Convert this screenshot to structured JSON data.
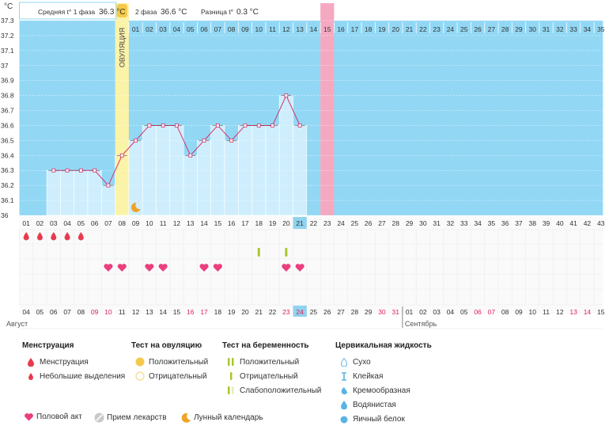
{
  "header": {
    "unit": "°C",
    "phase1_label": "Средняя t° 1 фаза",
    "phase1_value": "36.3 °C",
    "phase2_label": "2 фаза",
    "phase2_value": "36.6 °C",
    "diff_label": "Разница t°",
    "diff_value": "0.3 °C"
  },
  "chart_data": {
    "type": "line",
    "ylim": [
      36,
      37.3
    ],
    "y_ticks": [
      "37.3",
      "37.2",
      "37.1",
      "37",
      "36.9",
      "36.8",
      "36.7",
      "36.6",
      "36.5",
      "36.4",
      "36.3",
      "36.2",
      "36.1",
      "36"
    ],
    "cycle_days": [
      "01",
      "02",
      "03",
      "04",
      "05",
      "06",
      "07",
      "08",
      "09",
      "10",
      "11",
      "12",
      "13",
      "14",
      "15",
      "16",
      "17",
      "18",
      "19",
      "20",
      "21",
      "22",
      "23",
      "24",
      "25",
      "26",
      "27",
      "28",
      "29",
      "30",
      "31",
      "32",
      "33",
      "34",
      "35",
      "36",
      "37",
      "38",
      "39",
      "40",
      "41",
      "42",
      "43"
    ],
    "top_days": [
      "01",
      "02",
      "03",
      "04",
      "05",
      "06",
      "07",
      "08",
      "09",
      "10",
      "11",
      "12",
      "13",
      "14",
      "15",
      "16",
      "17",
      "18",
      "19",
      "20",
      "21",
      "22",
      "23",
      "24",
      "25",
      "26",
      "27",
      "28",
      "29",
      "30",
      "31",
      "32",
      "33",
      "34",
      "35"
    ],
    "ovulation_label": "ОВУЛЯЦИЯ",
    "series": [
      {
        "x": [
          "03",
          "04",
          "05",
          "06",
          "07",
          "08",
          "09",
          "10",
          "11",
          "12",
          "13",
          "14",
          "15",
          "16",
          "17",
          "18",
          "19",
          "20",
          "21"
        ],
        "values": [
          36.3,
          36.3,
          36.3,
          36.3,
          36.2,
          36.4,
          36.5,
          36.6,
          36.6,
          36.6,
          36.4,
          36.5,
          36.6,
          36.5,
          36.6,
          36.6,
          36.6,
          36.8,
          36.6
        ]
      }
    ],
    "dates_row": [
      "04",
      "05",
      "06",
      "07",
      "08",
      "09",
      "10",
      "11",
      "12",
      "13",
      "14",
      "15",
      "16",
      "17",
      "18",
      "19",
      "20",
      "21",
      "22",
      "23",
      "24",
      "25",
      "26",
      "27",
      "28",
      "29",
      "30",
      "31",
      "01",
      "02",
      "03",
      "04",
      "05",
      "06",
      "07",
      "08",
      "09",
      "10",
      "11",
      "12",
      "13",
      "14",
      "15"
    ],
    "weekend_date_positions": [
      5,
      6,
      12,
      13,
      19,
      20,
      26,
      27,
      33,
      34,
      40,
      41
    ],
    "months": [
      "Август",
      "Сентябрь"
    ],
    "today_date": "24",
    "today_cycle_day": "21",
    "marked_cycle_day": "23",
    "menstruation_days": [
      1,
      2,
      3,
      4,
      5
    ],
    "intercourse_days": [
      7,
      8,
      10,
      11,
      14,
      15,
      20,
      21
    ],
    "pregnancy_test_days": [
      18,
      20
    ],
    "moon_day": 9
  },
  "legend": {
    "menstruation": {
      "title": "Менструация",
      "items": [
        "Менструация",
        "Небольшие выделения"
      ]
    },
    "ovulation_test": {
      "title": "Тест на овуляцию",
      "items": [
        "Положительный",
        "Отрицательный"
      ]
    },
    "pregnancy_test": {
      "title": "Тест на беременность",
      "items": [
        "Положительный",
        "Отрицательный",
        "Слабоположительный"
      ]
    },
    "cervical": {
      "title": "Цервикальная жидкость",
      "items": [
        "Сухо",
        "Клейкая",
        "Кремообразная",
        "Водянистая",
        "Яичный белок"
      ]
    },
    "bottom": [
      "Половой акт",
      "Прием лекарств",
      "Лунный календарь"
    ]
  },
  "colors": {
    "sky": "#92d8f5",
    "bar": "#cfeefd",
    "ovulation": "#fbf3a8",
    "marked": "#f5a9c1",
    "line": "#d6306b",
    "today": "#8fd3ee",
    "weekend": "#e0245e",
    "heart": "#ea3f7f",
    "drop": "#e83a4e",
    "test": "#a8c62e"
  }
}
